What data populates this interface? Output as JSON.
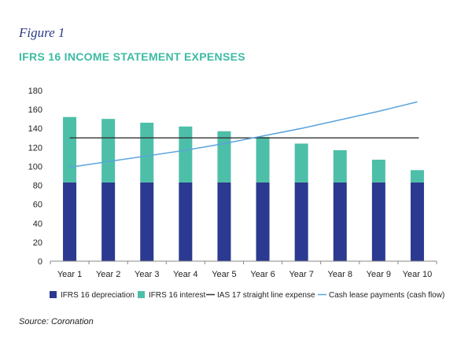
{
  "figure_label": "Figure 1",
  "title": "IFRS 16 INCOME STATEMENT EXPENSES",
  "source": "Source: Coronation",
  "colors": {
    "depreciation": "#2b3990",
    "interest": "#4dbfa8",
    "straight_line": "#333333",
    "cash": "#5aa3dc",
    "title": "#3dbba3",
    "figure_label": "#2a3a86",
    "axis": "#888888"
  },
  "chart_data": {
    "type": "bar",
    "stacked": true,
    "categories": [
      "Year 1",
      "Year 2",
      "Year 3",
      "Year 4",
      "Year 5",
      "Year 6",
      "Year 7",
      "Year 8",
      "Year 9",
      "Year 10"
    ],
    "series": [
      {
        "name": "IFRS 16 depreciation",
        "kind": "bar",
        "values": [
          83,
          83,
          83,
          83,
          83,
          83,
          83,
          83,
          83,
          83
        ]
      },
      {
        "name": "IFRS 16 interest",
        "kind": "bar",
        "values": [
          69,
          67,
          63,
          59,
          54,
          48,
          41,
          34,
          24,
          13
        ]
      },
      {
        "name": "IAS 17 straight line expense",
        "kind": "line",
        "values": [
          130,
          130,
          130,
          130,
          130,
          130,
          130,
          130,
          130,
          130
        ]
      },
      {
        "name": "Cash lease payments (cash flow)",
        "kind": "line",
        "values": [
          99,
          105,
          111,
          117,
          124,
          132,
          140,
          149,
          158,
          168
        ]
      }
    ],
    "ylim": [
      0,
      180
    ],
    "yticks": [
      0,
      20,
      40,
      60,
      80,
      100,
      120,
      140,
      160,
      180
    ],
    "grid": false,
    "legend": "bottom"
  }
}
